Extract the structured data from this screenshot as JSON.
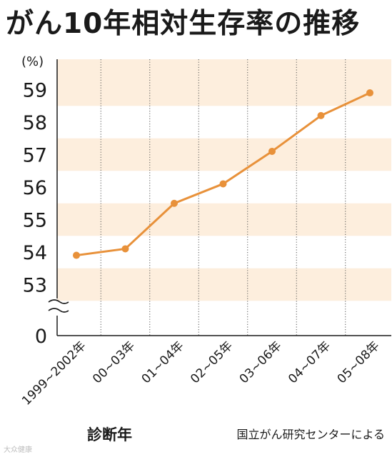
{
  "title": "がん10年相対生存率の推移",
  "source": "国立がん研究センターによる",
  "watermark": "大众健康",
  "colors": {
    "line": "#e8913a",
    "band": "#fdeedd",
    "text": "#1a1a1a",
    "axis": "#1a1a1a"
  },
  "chart_data": {
    "type": "line",
    "title": "がん10年相対生存率の推移",
    "xlabel": "診断年",
    "y_unit": "(%)",
    "categories": [
      "1999~2002年",
      "00~03年",
      "01~04年",
      "02~05年",
      "03~06年",
      "04~07年",
      "05~08年"
    ],
    "values": [
      53.9,
      54.1,
      55.5,
      56.1,
      57.1,
      58.2,
      58.9
    ],
    "y_ticks": [
      53,
      54,
      55,
      56,
      57,
      58,
      59
    ],
    "y_axis_zero_label": "0",
    "ylim": [
      52.5,
      59.5
    ],
    "axis_break": true,
    "grid": "dotted vertical lines between categories; alternating horizontal bands",
    "legend": "none"
  }
}
